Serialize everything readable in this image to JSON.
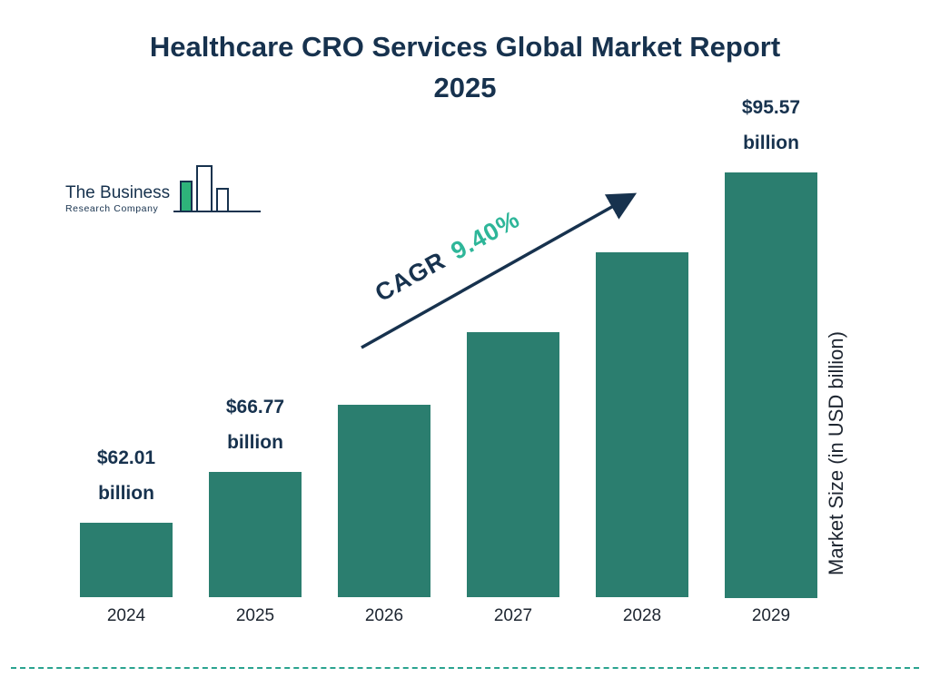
{
  "title": "Healthcare CRO Services Global Market Report 2025",
  "logo": {
    "line1": "The Business",
    "line2": "Research Company"
  },
  "cagr": {
    "prefix": "CAGR",
    "value": "9.40%"
  },
  "colors": {
    "bar": "#2b7e6f",
    "title_navy": "#17324e",
    "cagr_green": "#2eb699",
    "dash_teal": "#2aa38f",
    "logo_green": "#2eb37a"
  },
  "chart_data": {
    "type": "bar",
    "title": "Healthcare CRO Services Global Market Report 2025",
    "categories": [
      "2024",
      "2025",
      "2026",
      "2027",
      "2028",
      "2029"
    ],
    "values": [
      62.01,
      66.77,
      73.05,
      79.92,
      87.43,
      95.57
    ],
    "bar_labels": [
      "$62.01 billion",
      "$66.77 billion",
      "",
      "",
      "",
      "$95.57 billion"
    ],
    "xlabel": "",
    "ylabel": "Market Size (in USD billion)",
    "ylim": [
      55,
      100
    ],
    "baseline_value": 55,
    "grid": false,
    "legend": "none",
    "annotation": "CAGR 9.40%"
  }
}
